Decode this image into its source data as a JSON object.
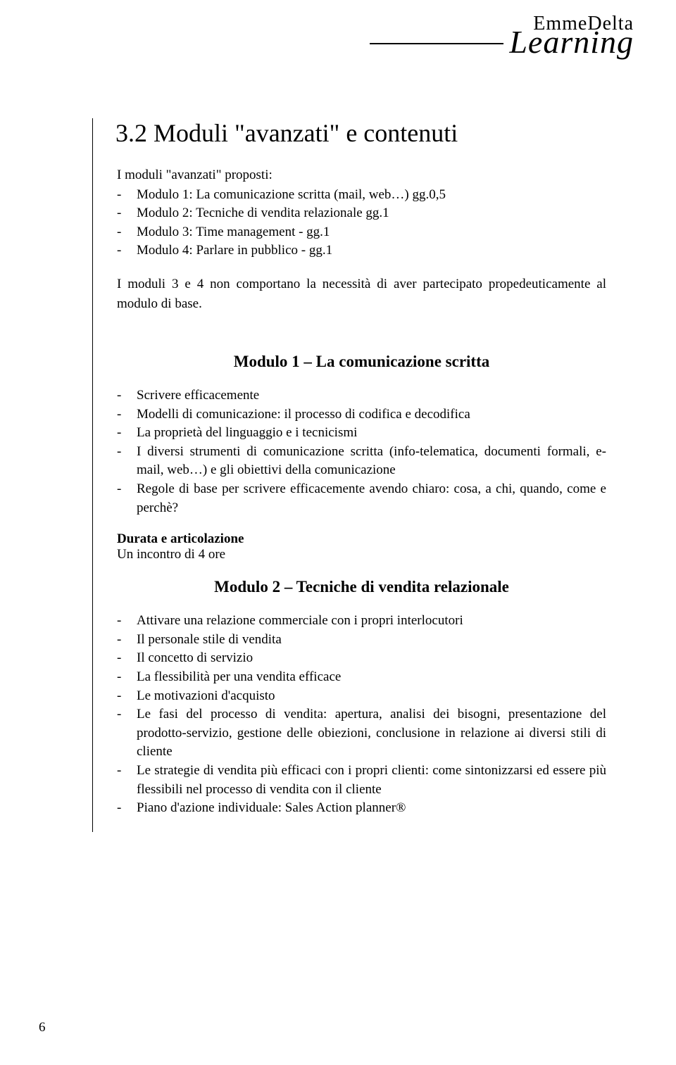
{
  "logo": {
    "top": "EmmeDelta",
    "hand": "Learning"
  },
  "heading": "3.2  Moduli \"avanzati\" e contenuti",
  "intro": "I moduli \"avanzati\" proposti:",
  "intro_items": [
    "Modulo 1: La comunicazione scritta (mail, web…) gg.0,5",
    "Modulo 2: Tecniche di vendita relazionale gg.1",
    "Modulo 3: Time management - gg.1",
    "Modulo 4: Parlare in pubblico - gg.1"
  ],
  "note": "I moduli 3 e 4 non comportano la necessità di aver partecipato propedeuticamente al modulo di base.",
  "module1": {
    "title": "Modulo 1 – La comunicazione scritta",
    "items": [
      "Scrivere efficacemente",
      "Modelli di comunicazione: il processo di codifica e decodifica",
      "La proprietà del linguaggio e i tecnicismi",
      "I diversi strumenti di comunicazione scritta (info-telematica, documenti formali, e-mail, web…) e gli obiettivi della comunicazione",
      "Regole di base per scrivere efficacemente avendo chiaro: cosa, a chi, quando, come e perchè?"
    ],
    "durata_label": "Durata e articolazione",
    "durata_text": "Un incontro di 4 ore"
  },
  "module2": {
    "title": "Modulo 2 – Tecniche di vendita relazionale",
    "items": [
      "Attivare una relazione commerciale con i propri interlocutori",
      "Il personale stile di vendita",
      "Il concetto di servizio",
      "La flessibilità per una vendita efficace",
      "Le motivazioni d'acquisto",
      "Le fasi del processo di vendita: apertura, analisi dei bisogni, presentazione del prodotto-servizio, gestione delle obiezioni, conclusione in relazione ai diversi stili di cliente",
      "Le strategie di vendita più efficaci con i propri clienti: come sintonizzarsi ed essere più flessibili nel processo di vendita con il cliente",
      "Piano d'azione individuale: Sales Action planner®"
    ]
  },
  "page_number": "6"
}
